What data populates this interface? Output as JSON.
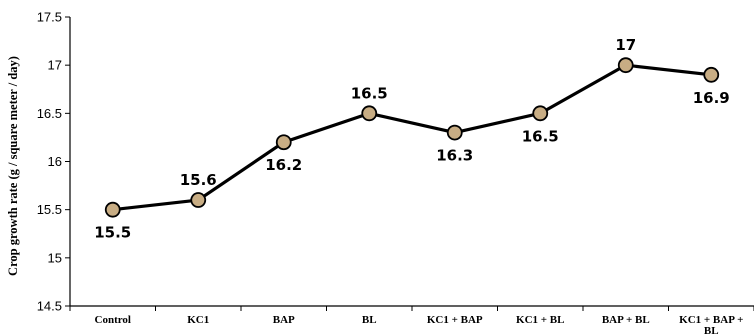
{
  "chart_data": {
    "type": "line",
    "title": "",
    "xlabel": "",
    "ylabel": "Crop growth rate (g / square meter / day)",
    "categories": [
      "Control",
      "KC1",
      "BAP",
      "BL",
      "KC1 + BAP",
      "KC1 + BL",
      "BAP + BL",
      "KC1 + BAP + BL"
    ],
    "values": [
      15.5,
      15.6,
      16.2,
      16.5,
      16.3,
      16.5,
      17,
      16.9
    ],
    "data_labels": [
      "15.5",
      "15.6",
      "16.2",
      "16.5",
      "16.3",
      "16.5",
      "17",
      "16.9"
    ],
    "label_positions": [
      "below",
      "above",
      "below",
      "above",
      "below",
      "below",
      "above",
      "below"
    ],
    "ylim": [
      14.5,
      17.5
    ],
    "yticks": [
      "14.5",
      "15",
      "15.5",
      "16",
      "16.5",
      "17",
      "17.5"
    ],
    "grid": false,
    "legend": "none",
    "marker_color": "#c8ad84",
    "line_color": "#000000"
  }
}
